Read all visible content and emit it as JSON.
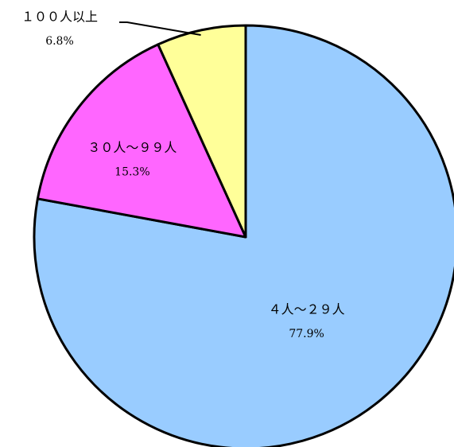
{
  "chart_data": {
    "type": "pie",
    "categories": [
      "４人～２９人",
      "３０人～９９人",
      "１００人以上"
    ],
    "values": [
      77.9,
      15.3,
      6.8
    ],
    "value_labels": [
      "77.9%",
      "15.3%",
      "6.8%"
    ],
    "colors": [
      "#99ccff",
      "#ff66ff",
      "#ffff99"
    ]
  }
}
